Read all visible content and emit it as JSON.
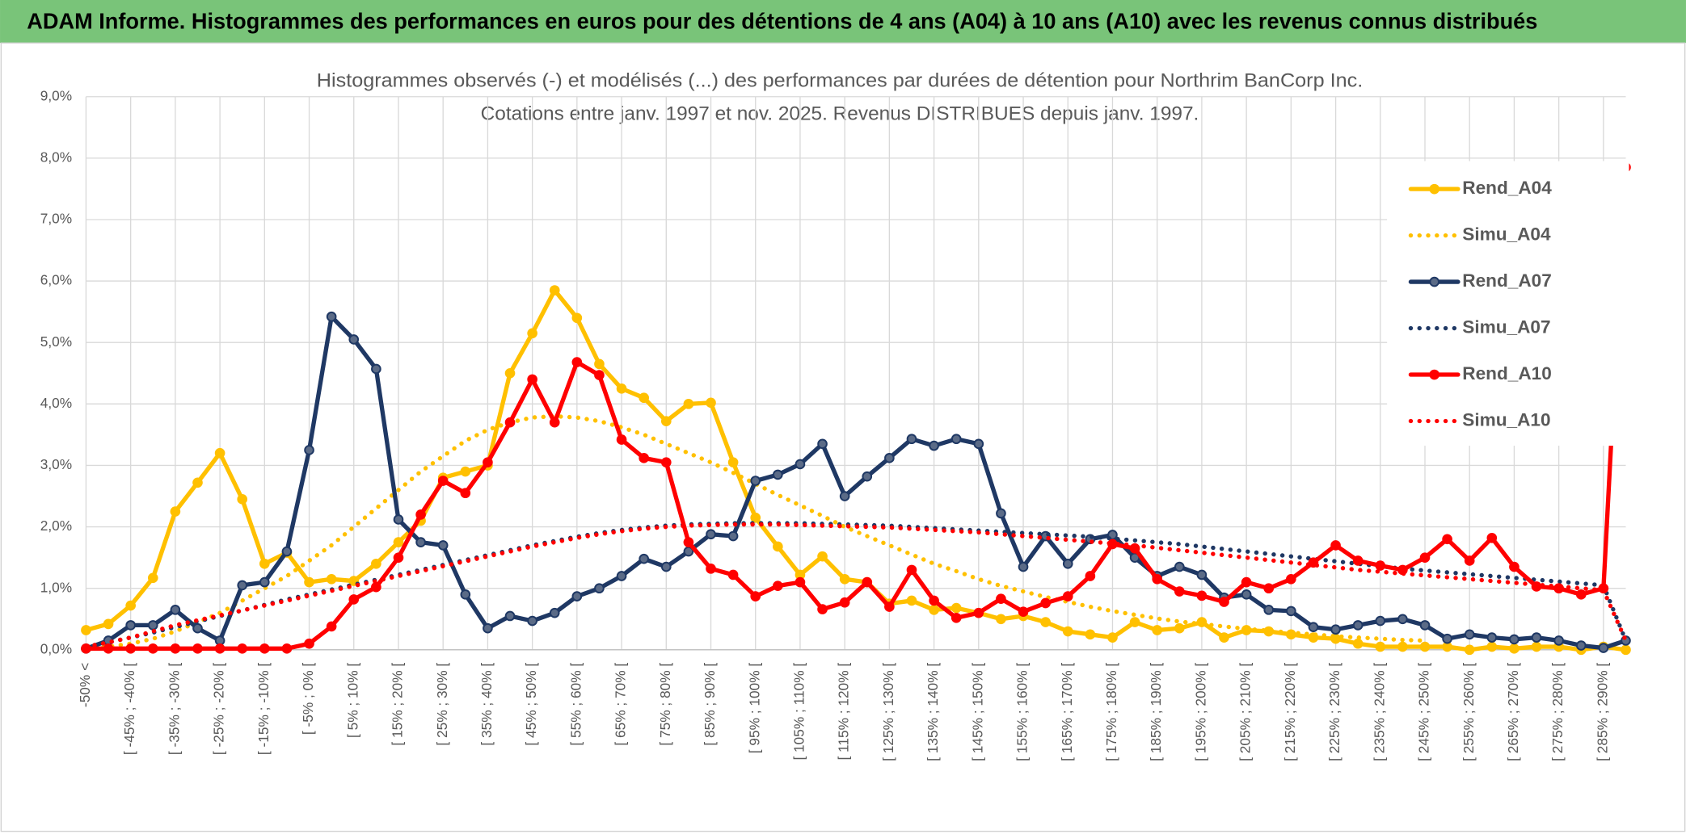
{
  "header": {
    "title": "ADAM Informe. Histogrammes des performances en euros pour des détentions de 4 ans (A04) à 10 ans (A10) avec les revenus connus distribués"
  },
  "chart_data": {
    "type": "line",
    "title": "Histogrammes observés (-) et modélisés (...) des performances par durées de détention pour Northrim BanCorp Inc.",
    "subtitle": "Cotations entre janv. 1997 et nov. 2025. Revenus DISTRIBUES depuis janv. 1997.",
    "categories": [
      "-50% <",
      null,
      "[ -45% ; -40% [",
      null,
      "[ -35% ; -30% [",
      null,
      "[ -25% ; -20% [",
      null,
      "[ -15% ; -10% [",
      null,
      "[ -5% ; 0% [",
      null,
      "[ 5% ; 10% [",
      null,
      "[ 15% ; 20% [",
      null,
      "[ 25% ; 30% [",
      null,
      "[ 35% ; 40% [",
      null,
      "[ 45% ; 50% [",
      null,
      "[ 55% ; 60% [",
      null,
      "[ 65% ; 70% [",
      null,
      "[ 75% ; 80% [",
      null,
      "[ 85% ; 90% [",
      null,
      "[ 95% ; 100% [",
      null,
      "[ 105% ; 110% [",
      null,
      "[ 115% ; 120% [",
      null,
      "[ 125% ; 130% [",
      null,
      "[ 135% ; 140% [",
      null,
      "[ 145% ; 150% [",
      null,
      "[ 155% ; 160% [",
      null,
      "[ 165% ; 170% [",
      null,
      "[ 175% ; 180% [",
      null,
      "[ 185% ; 190% [",
      null,
      "[ 195% ; 200% [",
      null,
      "[ 205% ; 210% [",
      null,
      "[ 215% ; 220% [",
      null,
      "[ 225% ; 230% [",
      null,
      "[ 235% ; 240% [",
      null,
      "[ 245% ; 250% [",
      null,
      "[ 255% ; 260% [",
      null,
      "[ 265% ; 270% [",
      null,
      "[ 275% ; 280% [",
      null,
      "[ 285% ; 290% [",
      null
    ],
    "series": [
      {
        "name": "Rend_A04",
        "color": "#FFC000",
        "line_style": "solid",
        "marker": true,
        "values": [
          0.32,
          0.42,
          0.72,
          1.17,
          2.25,
          2.72,
          3.2,
          2.45,
          1.4,
          1.58,
          1.1,
          1.15,
          1.12,
          1.4,
          1.75,
          2.1,
          2.8,
          2.9,
          3.0,
          4.5,
          5.15,
          5.85,
          5.4,
          4.65,
          4.25,
          4.1,
          3.72,
          4.0,
          4.02,
          3.05,
          2.15,
          1.68,
          1.22,
          1.52,
          1.15,
          1.1,
          0.75,
          0.8,
          0.65,
          0.68,
          0.6,
          0.5,
          0.55,
          0.45,
          0.3,
          0.25,
          0.2,
          0.45,
          0.32,
          0.35,
          0.45,
          0.2,
          0.32,
          0.3,
          0.25,
          0.2,
          0.18,
          0.1,
          0.05,
          0.05,
          0.05,
          0.05,
          0.0,
          0.05,
          0.02,
          0.05,
          0.05,
          0.0,
          0.05,
          0.0
        ]
      },
      {
        "name": "Simu_A04",
        "color": "#FFC000",
        "line_style": "dotted",
        "marker": false,
        "values": [
          0.02,
          0.05,
          0.1,
          0.18,
          0.3,
          0.45,
          0.6,
          0.8,
          1.0,
          1.2,
          1.45,
          1.7,
          2.0,
          2.3,
          2.6,
          2.9,
          3.15,
          3.4,
          3.58,
          3.7,
          3.78,
          3.8,
          3.78,
          3.72,
          3.62,
          3.5,
          3.35,
          3.2,
          3.05,
          2.88,
          2.7,
          2.52,
          2.35,
          2.18,
          2.0,
          1.85,
          1.7,
          1.55,
          1.4,
          1.28,
          1.15,
          1.04,
          0.95,
          0.86,
          0.78,
          0.7,
          0.63,
          0.57,
          0.51,
          0.46,
          0.42,
          0.38,
          0.34,
          0.31,
          0.28,
          0.25,
          0.22,
          0.2,
          0.18,
          0.16,
          0.15,
          null,
          null,
          null,
          null,
          null,
          null,
          null,
          null,
          null
        ]
      },
      {
        "name": "Rend_A07",
        "color": "#1F3864",
        "line_style": "solid",
        "marker": true,
        "values": [
          0.02,
          0.15,
          0.4,
          0.4,
          0.65,
          0.35,
          0.15,
          1.05,
          1.1,
          1.6,
          3.25,
          5.42,
          5.05,
          4.57,
          2.12,
          1.75,
          1.7,
          0.9,
          0.35,
          0.55,
          0.47,
          0.6,
          0.87,
          1.0,
          1.2,
          1.48,
          1.35,
          1.6,
          1.88,
          1.85,
          2.75,
          2.85,
          3.02,
          3.35,
          2.5,
          2.82,
          3.12,
          3.43,
          3.32,
          3.43,
          3.35,
          2.22,
          1.35,
          1.85,
          1.4,
          1.8,
          1.87,
          1.5,
          1.2,
          1.35,
          1.22,
          0.85,
          0.9,
          0.65,
          0.63,
          0.37,
          0.33,
          0.4,
          0.47,
          0.5,
          0.4,
          0.18,
          0.25,
          0.2,
          0.17,
          0.2,
          0.15,
          0.07,
          0.03,
          0.15
        ]
      },
      {
        "name": "Simu_A07",
        "color": "#1F3864",
        "line_style": "dotted",
        "marker": false,
        "values": [
          0.05,
          0.12,
          0.2,
          0.28,
          0.37,
          0.46,
          0.55,
          0.64,
          0.73,
          0.82,
          0.9,
          0.98,
          1.06,
          1.14,
          1.22,
          1.3,
          1.38,
          1.46,
          1.54,
          1.62,
          1.7,
          1.77,
          1.84,
          1.9,
          1.95,
          1.99,
          2.02,
          2.04,
          2.05,
          2.06,
          2.06,
          2.06,
          2.06,
          2.05,
          2.04,
          2.03,
          2.02,
          2.0,
          1.98,
          1.96,
          1.94,
          1.92,
          1.9,
          1.88,
          1.86,
          1.84,
          1.81,
          1.78,
          1.75,
          1.72,
          1.68,
          1.64,
          1.6,
          1.56,
          1.52,
          1.48,
          1.44,
          1.4,
          1.36,
          1.32,
          1.29,
          1.26,
          1.23,
          1.2,
          1.17,
          1.14,
          1.11,
          1.08,
          1.05,
          0.15
        ]
      },
      {
        "name": "Rend_A10",
        "color": "#FF0000",
        "line_style": "solid",
        "marker": true,
        "values": [
          0.02,
          0.02,
          0.02,
          0.02,
          0.02,
          0.02,
          0.02,
          0.02,
          0.02,
          0.02,
          0.1,
          0.38,
          0.82,
          1.02,
          1.5,
          2.2,
          2.75,
          2.55,
          3.05,
          3.7,
          4.4,
          3.7,
          4.68,
          4.47,
          3.42,
          3.12,
          3.05,
          1.75,
          1.32,
          1.22,
          0.87,
          1.04,
          1.1,
          0.66,
          0.77,
          1.1,
          0.7,
          1.3,
          0.8,
          0.52,
          0.6,
          0.83,
          0.62,
          0.76,
          0.87,
          1.2,
          1.72,
          1.65,
          1.15,
          0.95,
          0.88,
          0.78,
          1.1,
          1.0,
          1.15,
          1.42,
          1.7,
          1.45,
          1.37,
          1.3,
          1.5,
          1.8,
          1.45,
          1.82,
          1.35,
          1.03,
          1.0,
          0.9,
          1.0,
          7.85
        ]
      },
      {
        "name": "Simu_A10",
        "color": "#FF0000",
        "line_style": "dotted",
        "marker": false,
        "values": [
          0.05,
          0.12,
          0.2,
          0.3,
          0.4,
          0.48,
          0.56,
          0.64,
          0.72,
          0.8,
          0.88,
          0.96,
          1.04,
          1.12,
          1.2,
          1.28,
          1.36,
          1.44,
          1.52,
          1.6,
          1.68,
          1.75,
          1.82,
          1.88,
          1.93,
          1.97,
          2.0,
          2.02,
          2.03,
          2.04,
          2.04,
          2.04,
          2.03,
          2.02,
          2.01,
          2.0,
          1.99,
          1.97,
          1.95,
          1.93,
          1.91,
          1.88,
          1.85,
          1.82,
          1.79,
          1.76,
          1.73,
          1.7,
          1.66,
          1.62,
          1.58,
          1.54,
          1.5,
          1.46,
          1.42,
          1.38,
          1.34,
          1.3,
          1.27,
          1.24,
          1.21,
          1.18,
          1.15,
          1.12,
          1.09,
          1.06,
          1.03,
          1.0,
          0.97,
          0.15
        ]
      }
    ],
    "ylim": [
      0,
      9
    ],
    "yticks": [
      {
        "value": 0,
        "label": "0,0%"
      },
      {
        "value": 1,
        "label": "1,0%"
      },
      {
        "value": 2,
        "label": "2,0%"
      },
      {
        "value": 3,
        "label": "3,0%"
      },
      {
        "value": 4,
        "label": "4,0%"
      },
      {
        "value": 5,
        "label": "5,0%"
      },
      {
        "value": 6,
        "label": "6,0%"
      },
      {
        "value": 7,
        "label": "7,0%"
      },
      {
        "value": 8,
        "label": "8,0%"
      },
      {
        "value": 9,
        "label": "9,0%"
      }
    ],
    "grid": true,
    "legend": "upper right"
  }
}
